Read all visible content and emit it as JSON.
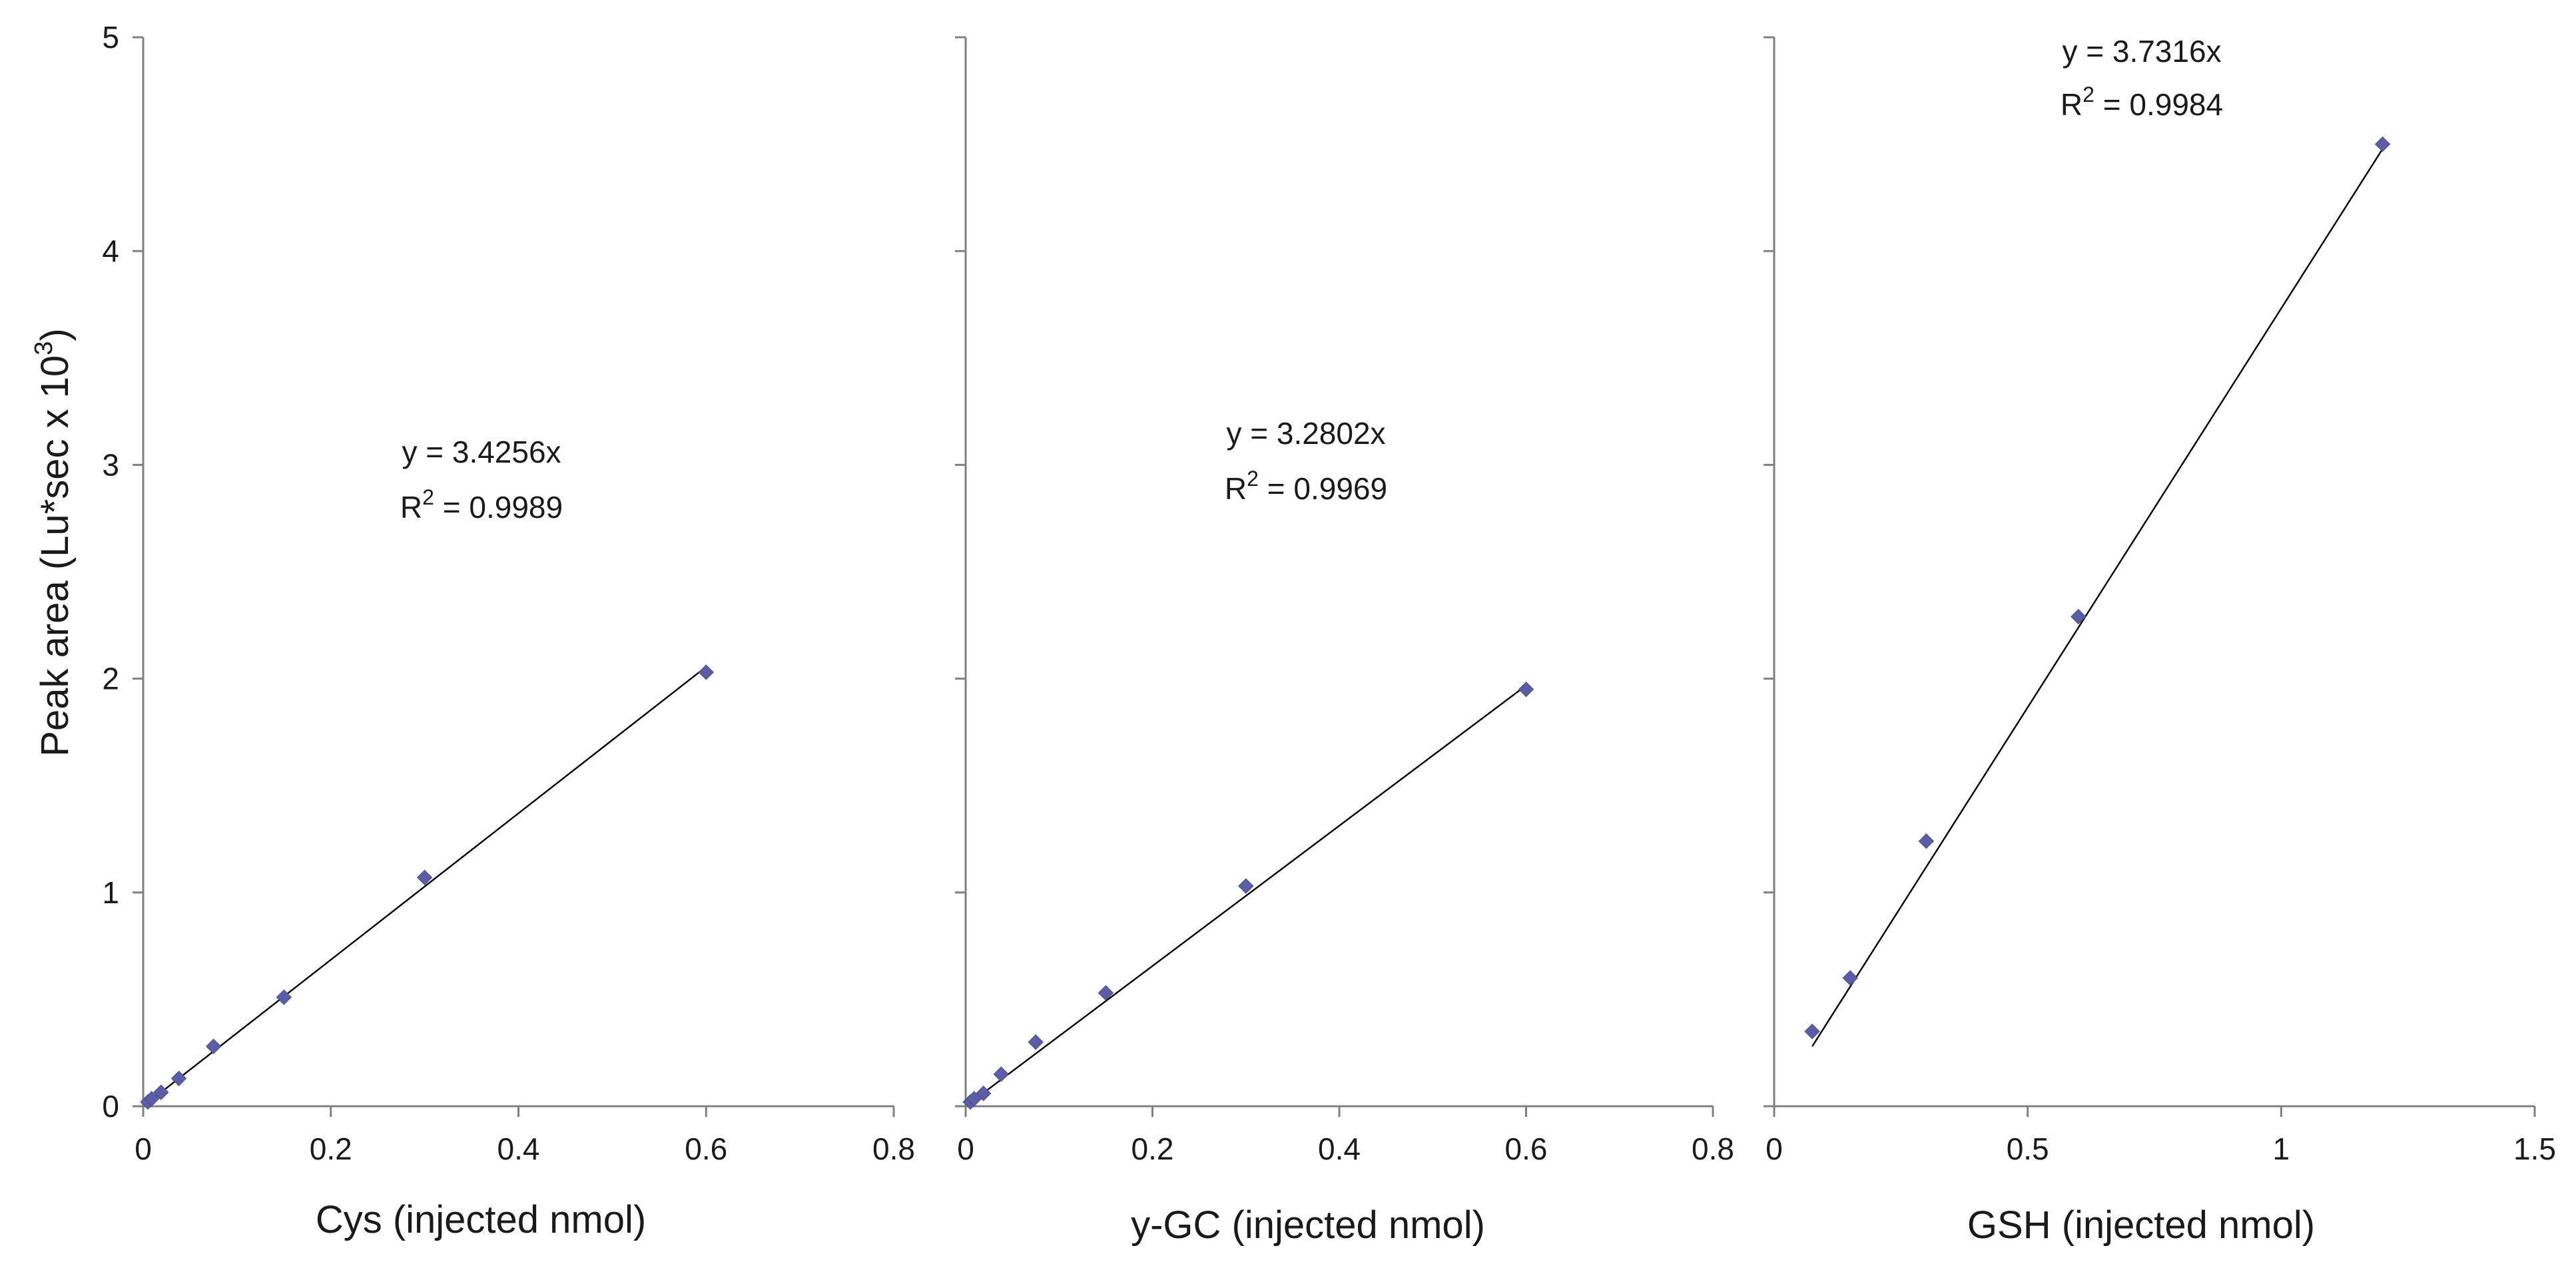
{
  "chart_data": [
    {
      "type": "scatter",
      "xlabel": "Cys (injected nmol)",
      "ylabel": "Peak area (Lu*sec x 10",
      "ylabel_sup": "3",
      "ylabel_end": ")",
      "xlim": [
        0,
        0.8
      ],
      "ylim": [
        0,
        5
      ],
      "xticks": [
        0,
        0.2,
        0.4,
        0.6,
        0.8
      ],
      "xtick_labels": [
        "0",
        "0.2",
        "0.4",
        "0.6",
        "0.8"
      ],
      "yticks": [
        0,
        1,
        2,
        3,
        4,
        5
      ],
      "ytick_labels": [
        "0",
        "1",
        "2",
        "3",
        "4",
        "5"
      ],
      "equation": "y = 3.4256x",
      "r2_prefix": "R",
      "r2_sup": "2",
      "r2_value": " = 0.9989",
      "trendline_slope": 3.4256,
      "trendline_x": [
        0.004,
        0.6
      ],
      "points": [
        {
          "x": 0.005,
          "y": 0.02
        },
        {
          "x": 0.009,
          "y": 0.035
        },
        {
          "x": 0.019,
          "y": 0.065
        },
        {
          "x": 0.038,
          "y": 0.13
        },
        {
          "x": 0.075,
          "y": 0.28
        },
        {
          "x": 0.15,
          "y": 0.51
        },
        {
          "x": 0.3,
          "y": 1.07
        },
        {
          "x": 0.6,
          "y": 2.03
        }
      ]
    },
    {
      "type": "scatter",
      "xlabel": "y-GC (injected nmol)",
      "xlim": [
        0,
        0.8
      ],
      "ylim": [
        0,
        5
      ],
      "xticks": [
        0,
        0.2,
        0.4,
        0.6,
        0.8
      ],
      "xtick_labels": [
        "0",
        "0.2",
        "0.4",
        "0.6",
        "0.8"
      ],
      "yticks": [
        0,
        1,
        2,
        3,
        4,
        5
      ],
      "equation": "y = 3.2802x",
      "r2_prefix": "R",
      "r2_sup": "2",
      "r2_value": " = 0.9969",
      "trendline_slope": 3.2802,
      "trendline_x": [
        0.004,
        0.6
      ],
      "points": [
        {
          "x": 0.005,
          "y": 0.02
        },
        {
          "x": 0.009,
          "y": 0.035
        },
        {
          "x": 0.019,
          "y": 0.06
        },
        {
          "x": 0.038,
          "y": 0.15
        },
        {
          "x": 0.075,
          "y": 0.3
        },
        {
          "x": 0.15,
          "y": 0.53
        },
        {
          "x": 0.3,
          "y": 1.03
        },
        {
          "x": 0.6,
          "y": 1.95
        }
      ]
    },
    {
      "type": "scatter",
      "xlabel": "GSH (injected nmol)",
      "xlim": [
        0,
        1.5
      ],
      "ylim": [
        0,
        5
      ],
      "xticks": [
        0,
        0.5,
        1,
        1.5
      ],
      "xtick_labels": [
        "0",
        "0.5",
        "1",
        "1.5"
      ],
      "yticks": [
        0,
        1,
        2,
        3,
        4,
        5
      ],
      "equation": "y = 3.7316x",
      "r2_prefix": "R",
      "r2_sup": "2",
      "r2_value": " = 0.9984",
      "trendline_slope": 3.7316,
      "trendline_x": [
        0.075,
        1.2
      ],
      "points": [
        {
          "x": 0.075,
          "y": 0.35
        },
        {
          "x": 0.15,
          "y": 0.6
        },
        {
          "x": 0.3,
          "y": 1.24
        },
        {
          "x": 0.6,
          "y": 2.29
        },
        {
          "x": 1.2,
          "y": 4.5
        }
      ]
    }
  ]
}
